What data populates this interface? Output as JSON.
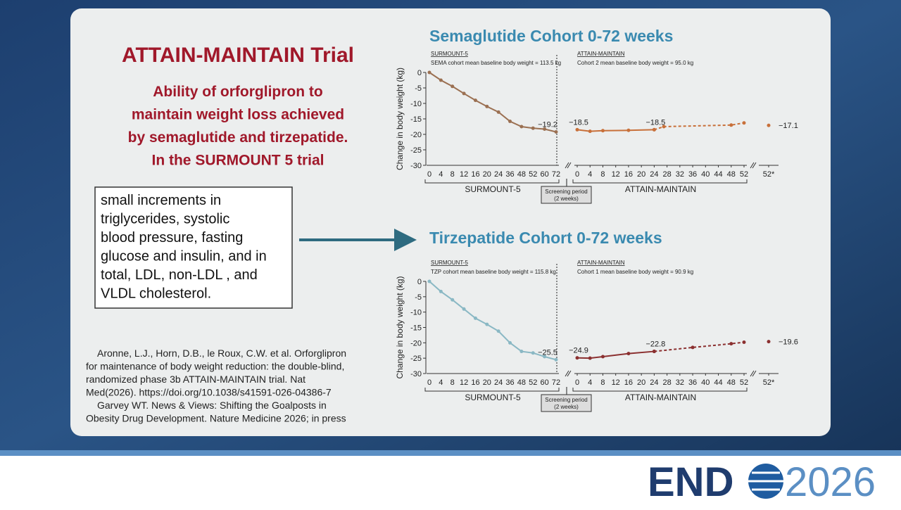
{
  "slide": {
    "title": "ATTAIN-MAINTAIN Trial",
    "subtitle_lines": [
      "Ability of  orforglipron to",
      "maintain weight loss achieved",
      "by semaglutide and tirzepatide.",
      "In the SURMOUNT 5 trial"
    ],
    "box_lines": [
      "small increments in",
      "triglycerides, systolic",
      "blood pressure, fasting",
      "glucose and insulin, and in",
      "total, LDL, non-LDL , and",
      "VLDL cholesterol."
    ],
    "citation_lines": [
      "Aronne, L.J., Horn, D.B., le Roux, C.W. et al. Orforglipron",
      "for maintenance of body weight reduction: the double-blind,",
      "randomized phase 3b ATTAIN-MAINTAIN trial. Nat",
      "Med(2026). https://doi.org/10.1038/s41591-026-04386-7",
      "Garvey WT.  News & Views: Shifting the Goalposts in",
      "Obesity Drug Development.  Nature Medicine 2026; in press"
    ]
  },
  "logo": {
    "left": "END",
    "right": "2026"
  },
  "chart_data": [
    {
      "type": "line",
      "title": "Semaglutide Cohort 0-72 weeks",
      "ylabel": "Change in body weight (kg)",
      "ylim": [
        -30,
        0
      ],
      "yticks": [
        0,
        -5,
        -10,
        -15,
        -20,
        -25,
        -30
      ],
      "note_lines": [
        "Screening period",
        "(2 weeks)"
      ],
      "panels": [
        {
          "header": "SURMOUNT-5",
          "subheader": "SEMA cohort mean baseline body weight = 113.5 kg",
          "group_label": "SURMOUNT-5",
          "categories": [
            "0",
            "4",
            "8",
            "12",
            "16",
            "20",
            "24",
            "36",
            "48",
            "52",
            "60",
            "72"
          ],
          "series": [
            {
              "color": "#9b7052",
              "values": [
                0,
                -2.5,
                -4.5,
                -6.8,
                -9,
                -11,
                -12.8,
                -15.8,
                -17.5,
                -18,
                -18.3,
                -19.2
              ],
              "value_labels": [
                null,
                null,
                null,
                null,
                null,
                null,
                null,
                null,
                null,
                null,
                null,
                "−19.2"
              ]
            }
          ]
        },
        {
          "header": "ATTAIN-MAINTAIN",
          "subheader": "Cohort 2 mean baseline body weight = 95.0 kg",
          "group_label": "ATTAIN-MAINTAIN",
          "xlim": [
            0,
            52
          ],
          "xticks": [
            0,
            4,
            8,
            12,
            16,
            20,
            24,
            28,
            32,
            36,
            40,
            44,
            48,
            52
          ],
          "series": [
            {
              "color": "#c8703a",
              "dashed": false,
              "x": [
                0,
                4,
                8,
                16,
                24
              ],
              "values": [
                -18.5,
                -19,
                -18.8,
                -18.7,
                -18.5
              ],
              "value_labels": [
                "−18.5",
                null,
                null,
                null,
                "−18.5"
              ]
            },
            {
              "color": "#c8703a",
              "dashed": true,
              "x": [
                24,
                27,
                48,
                52
              ],
              "values": [
                -18.5,
                -17.5,
                -17,
                -16.3
              ],
              "value_labels": [
                null,
                null,
                null,
                null
              ]
            }
          ]
        },
        {
          "xlim": [
            50,
            54
          ],
          "xticks": [
            {
              "value": 52,
              "label": "52*"
            }
          ],
          "series": [
            {
              "color": "#c8703a",
              "x": [
                52
              ],
              "values": [
                -17.1
              ],
              "value_labels": [
                "−17.1"
              ]
            }
          ]
        }
      ]
    },
    {
      "type": "line",
      "title": "Tirzepatide Cohort 0-72 weeks",
      "ylabel": "Change in body weight (kg)",
      "ylim": [
        -30,
        0
      ],
      "yticks": [
        0,
        -5,
        -10,
        -15,
        -20,
        -25,
        -30
      ],
      "note_lines": [
        "Screening period",
        "(2 weeks)"
      ],
      "panels": [
        {
          "header": "SURMOUNT-5",
          "subheader": "TZP cohort mean baseline body weight = 115.8 kg",
          "group_label": "SURMOUNT-5",
          "categories": [
            "0",
            "4",
            "8",
            "12",
            "16",
            "20",
            "24",
            "36",
            "48",
            "52",
            "60",
            "72"
          ],
          "series": [
            {
              "color": "#8ab8c4",
              "values": [
                0,
                -3.3,
                -6,
                -9,
                -12,
                -14,
                -16.2,
                -20,
                -22.8,
                -23.3,
                -24.5,
                -25.5
              ],
              "value_labels": [
                null,
                null,
                null,
                null,
                null,
                null,
                null,
                null,
                null,
                null,
                null,
                "−25.5"
              ]
            }
          ]
        },
        {
          "header": "ATTAIN-MAINTAIN",
          "subheader": "Cohort 1 mean baseline body weight = 90.9 kg",
          "group_label": "ATTAIN-MAINTAIN",
          "xlim": [
            0,
            52
          ],
          "xticks": [
            0,
            4,
            8,
            12,
            16,
            20,
            24,
            28,
            32,
            36,
            40,
            44,
            48,
            52
          ],
          "series": [
            {
              "color": "#8b3030",
              "dashed": false,
              "x": [
                0,
                4,
                8,
                16,
                24
              ],
              "values": [
                -24.9,
                -25,
                -24.5,
                -23.5,
                -22.8
              ],
              "value_labels": [
                "−24.9",
                null,
                null,
                null,
                "−22.8"
              ]
            },
            {
              "color": "#8b3030",
              "dashed": true,
              "x": [
                24,
                36,
                48,
                52
              ],
              "values": [
                -22.8,
                -21.5,
                -20.3,
                -19.8
              ],
              "value_labels": [
                null,
                null,
                null,
                null
              ]
            }
          ]
        },
        {
          "xlim": [
            50,
            54
          ],
          "xticks": [
            {
              "value": 52,
              "label": "52*"
            }
          ],
          "series": [
            {
              "color": "#8b3030",
              "x": [
                52
              ],
              "values": [
                -19.6
              ],
              "value_labels": [
                "−19.6"
              ]
            }
          ]
        }
      ]
    }
  ]
}
